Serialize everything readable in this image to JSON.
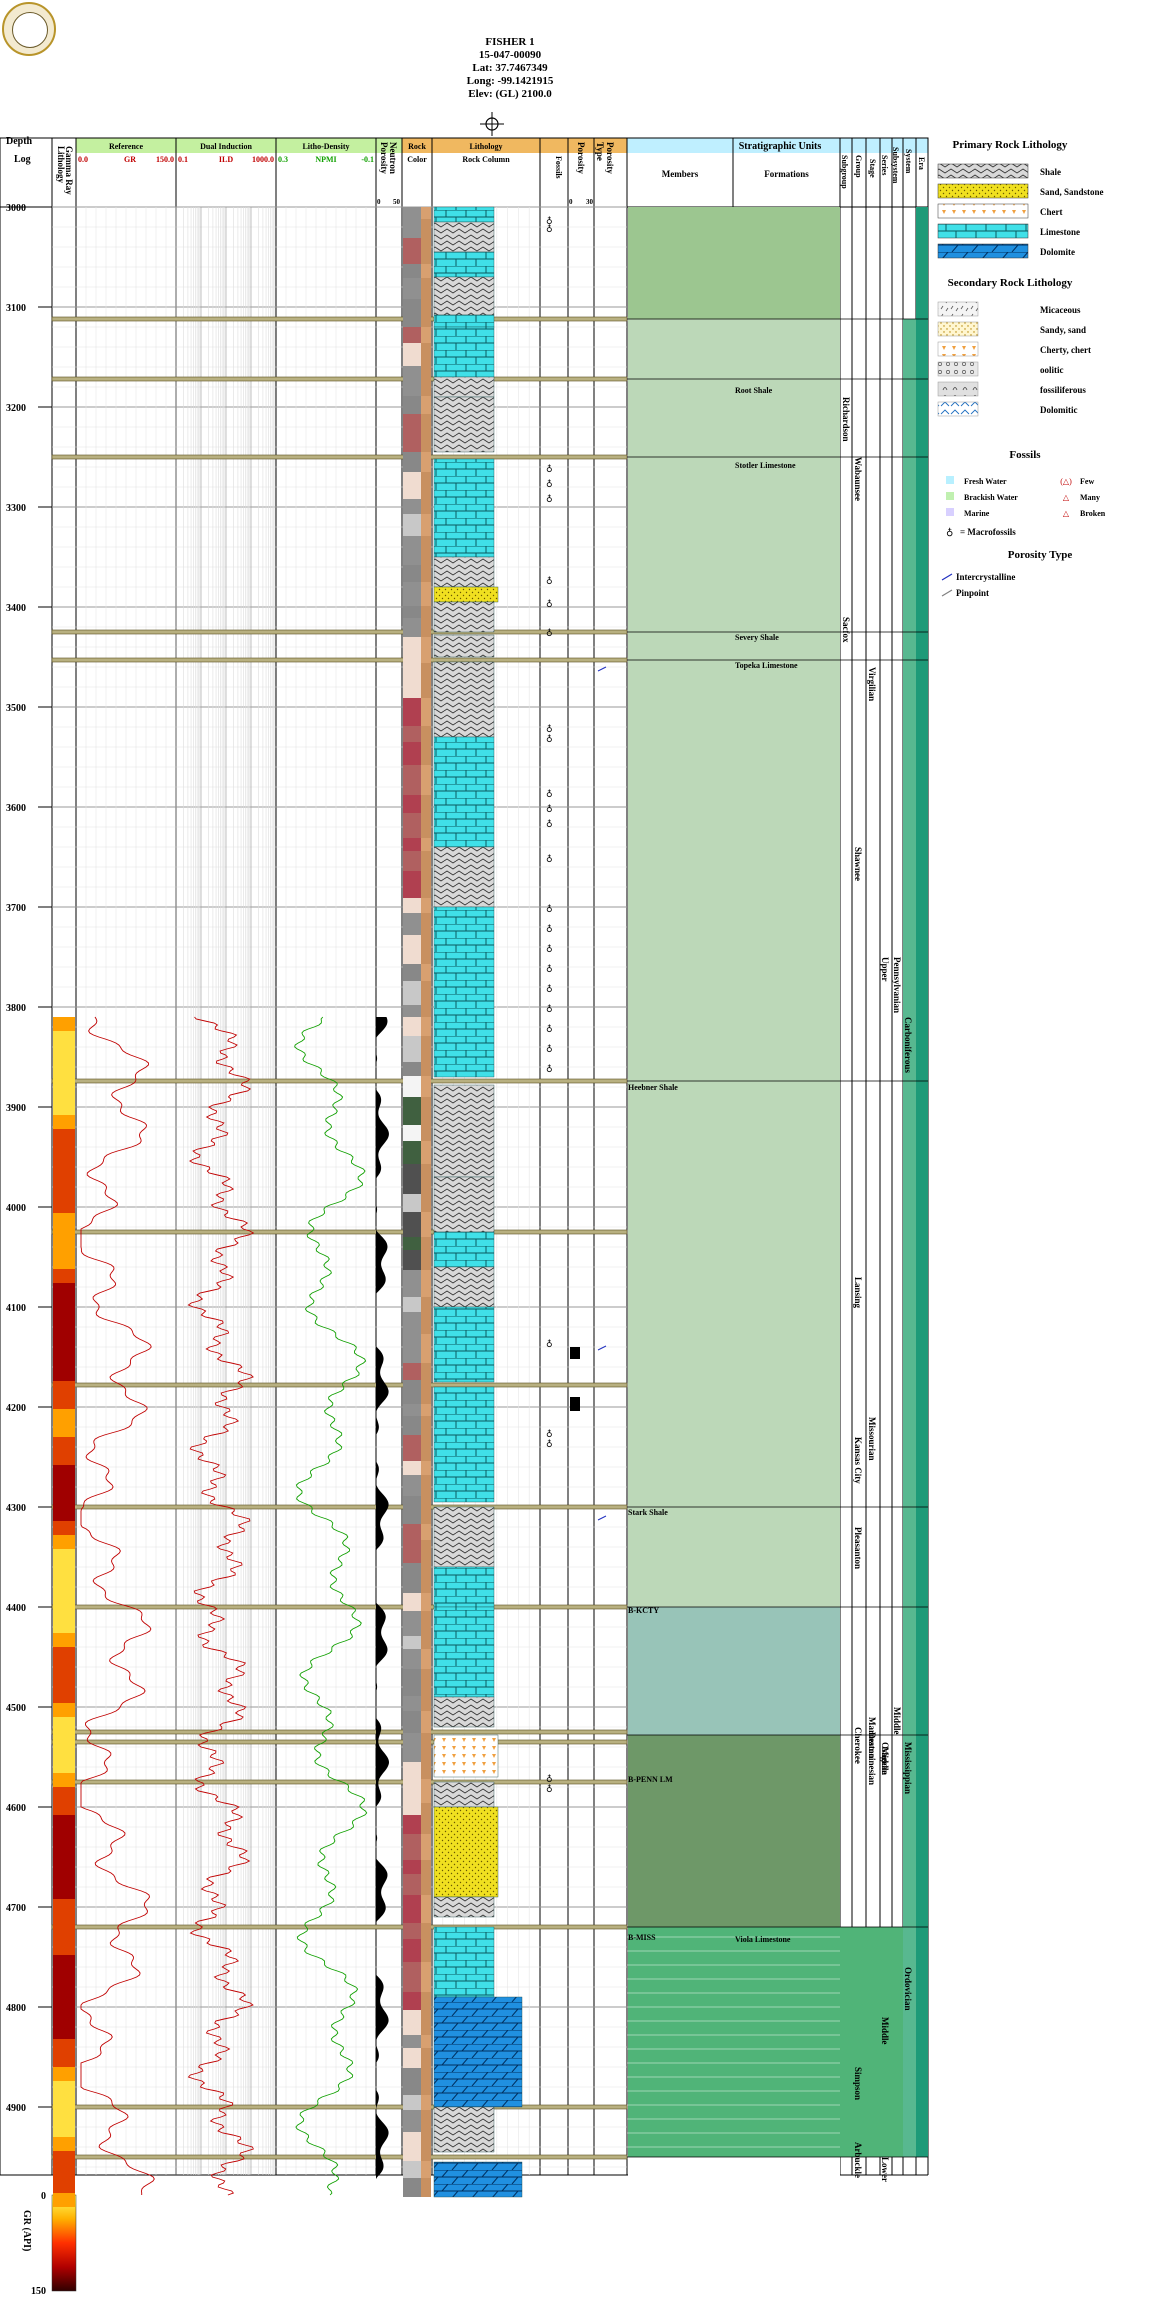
{
  "header": {
    "well_name": "FISHER 1",
    "api": "15-047-00090",
    "lat": "Lat: 37.7467349",
    "long": "Long: -99.1421915",
    "elev": "Elev: (GL) 2100.0"
  },
  "logo": {
    "name": "survey-seal"
  },
  "columns": {
    "depth": "Depth",
    "log": "Log",
    "lithology": "Lithology",
    "gamma_ray": "Gamma Ray",
    "reference": "Reference",
    "gr_min": "0.0",
    "gr_label": "GR",
    "gr_max": "150.0",
    "dual_induction": "Dual Induction",
    "ild_min": "0.1",
    "ild_label": "ILD",
    "ild_max": "1000.0",
    "litho_density": "Litho-Density",
    "npmi_min": "0.3",
    "npmi_label": "NPMI",
    "npmi_max": "-0.1",
    "porosity": "Porosity",
    "neutron": "Neutron",
    "por_min": "0",
    "por_max": "50",
    "rock": "Rock",
    "color": "Color",
    "lithology_col": "Lithology",
    "rock_column": "Rock Column",
    "fossils": "Fossils",
    "porosity2": "Porosity",
    "p_min": "0",
    "p_max": "30",
    "porosity_type1": "Porosity",
    "porosity_type2": "Type",
    "strat_units": "Stratigraphic Units",
    "members": "Members",
    "formations": "Formations",
    "subgroup": "Subgroup",
    "group": "Group",
    "stage": "Stage",
    "series": "Series",
    "subsystem": "Subsystem",
    "system": "System",
    "era": "Era"
  },
  "depth_ticks": [
    "3000",
    "3100",
    "3200",
    "3300",
    "3400",
    "3500",
    "3600",
    "3700",
    "3800",
    "3900",
    "4000",
    "4100",
    "4200",
    "4300",
    "4400",
    "4500",
    "4600",
    "4700",
    "4800",
    "4900"
  ],
  "members": [
    {
      "label": "Heebner Shale",
      "depth": 3880
    },
    {
      "label": "Stark Shale",
      "depth": 4305
    },
    {
      "label": "B-KCTY",
      "depth": 4403
    },
    {
      "label": "B-PENN LM",
      "depth": 4572
    },
    {
      "label": "B-MISS",
      "depth": 4730
    }
  ],
  "formations": [
    {
      "label": "Root Shale",
      "depth": 3183
    },
    {
      "label": "Stotler Limestone",
      "depth": 3258
    },
    {
      "label": "Severy Shale",
      "depth": 3430
    },
    {
      "label": "Topeka Limestone",
      "depth": 3458
    },
    {
      "label": "Viola Limestone",
      "depth": 4732
    }
  ],
  "subgroups": [
    {
      "label": "Richardson",
      "depth": 3220
    },
    {
      "label": "Sacfox",
      "depth": 3440
    }
  ],
  "groups": [
    {
      "label": "Wabaunsee",
      "depth": 3280
    },
    {
      "label": "Shawnee",
      "depth": 3670
    },
    {
      "label": "Lansing",
      "depth": 4100
    },
    {
      "label": "Kansas City",
      "depth": 4260
    },
    {
      "label": "Pleasanton",
      "depth": 4350
    },
    {
      "label": "Cherokee",
      "depth": 4550
    },
    {
      "label": "Simpson",
      "depth": 4890
    },
    {
      "label": "Arbuckle",
      "depth": 4965
    }
  ],
  "stages": [
    {
      "label": "Virgilian",
      "depth": 3490
    },
    {
      "label": "Missourian",
      "depth": 4240
    },
    {
      "label": "Marmaton",
      "depth": 4540
    },
    {
      "label": "Desmoinesian",
      "depth": 4555
    }
  ],
  "series": [
    {
      "label": "Upper",
      "depth": 3770
    },
    {
      "label": "Middle",
      "depth": 4560
    },
    {
      "label": "Osagean",
      "depth": 4555
    },
    {
      "label": "Middle",
      "depth": 4830
    },
    {
      "label": "Lower",
      "depth": 4970
    }
  ],
  "subsystems": [
    {
      "label": "Pennsylvanian",
      "depth": 3800
    },
    {
      "label": "Middle",
      "depth": 4550
    }
  ],
  "systems": [
    {
      "label": "Carboniferous",
      "depth": 3860
    },
    {
      "label": "Mississippian",
      "depth": 4585
    },
    {
      "label": "Ordovician",
      "depth": 4810
    }
  ],
  "legend": {
    "primary_title": "Primary Rock Lithology",
    "primary": [
      {
        "label": "Shale",
        "pattern": "shale"
      },
      {
        "label": "Sand, Sandstone",
        "pattern": "sand"
      },
      {
        "label": "Chert",
        "pattern": "chert"
      },
      {
        "label": "Limestone",
        "pattern": "limestone"
      },
      {
        "label": "Dolomite",
        "pattern": "dolomite"
      }
    ],
    "secondary_title": "Secondary Rock Lithology",
    "secondary": [
      {
        "label": "Micaceous",
        "pattern": "micaceous"
      },
      {
        "label": "Sandy, sand",
        "pattern": "sandy"
      },
      {
        "label": "Cherty, chert",
        "pattern": "cherty"
      },
      {
        "label": "oolitic",
        "pattern": "oolitic"
      },
      {
        "label": "fossiliferous",
        "pattern": "fossiliferous"
      },
      {
        "label": "Dolomitic",
        "pattern": "dolomitic"
      }
    ],
    "fossils_title": "Fossils",
    "water": [
      {
        "label": "Fresh Water",
        "color": "#b8f0ff"
      },
      {
        "label": "Brackish Water",
        "color": "#c0f0b0"
      },
      {
        "label": "Marine",
        "color": "#d8d0ff"
      }
    ],
    "abundance": [
      {
        "label": "Few",
        "glyph": "(△)"
      },
      {
        "label": "Many",
        "glyph": "△"
      },
      {
        "label": "Broken",
        "glyph": "△"
      }
    ],
    "macro_label": "= Macrofossils",
    "porosity_type_title": "Porosity Type",
    "porosity_types": [
      {
        "label": "Intercrystalline",
        "color": "#2030c0"
      },
      {
        "label": "Pinpoint",
        "color": "#808080"
      }
    ]
  },
  "gr_scale": {
    "label": "GR (API)",
    "min": "0",
    "max": "150"
  },
  "colors": {
    "track_header_green": "#c4f0a0",
    "track_header_orange": "#f0b860",
    "strat_header": "#bfefff",
    "gr_curve": "#c00000",
    "npmi_curve": "#10a000",
    "limestone": "#40e0e8",
    "shale_fill": "#888888",
    "sand": "#f0e020",
    "dolomite": "#2090e0",
    "formation_band_boundary": "#8a7a20"
  }
}
